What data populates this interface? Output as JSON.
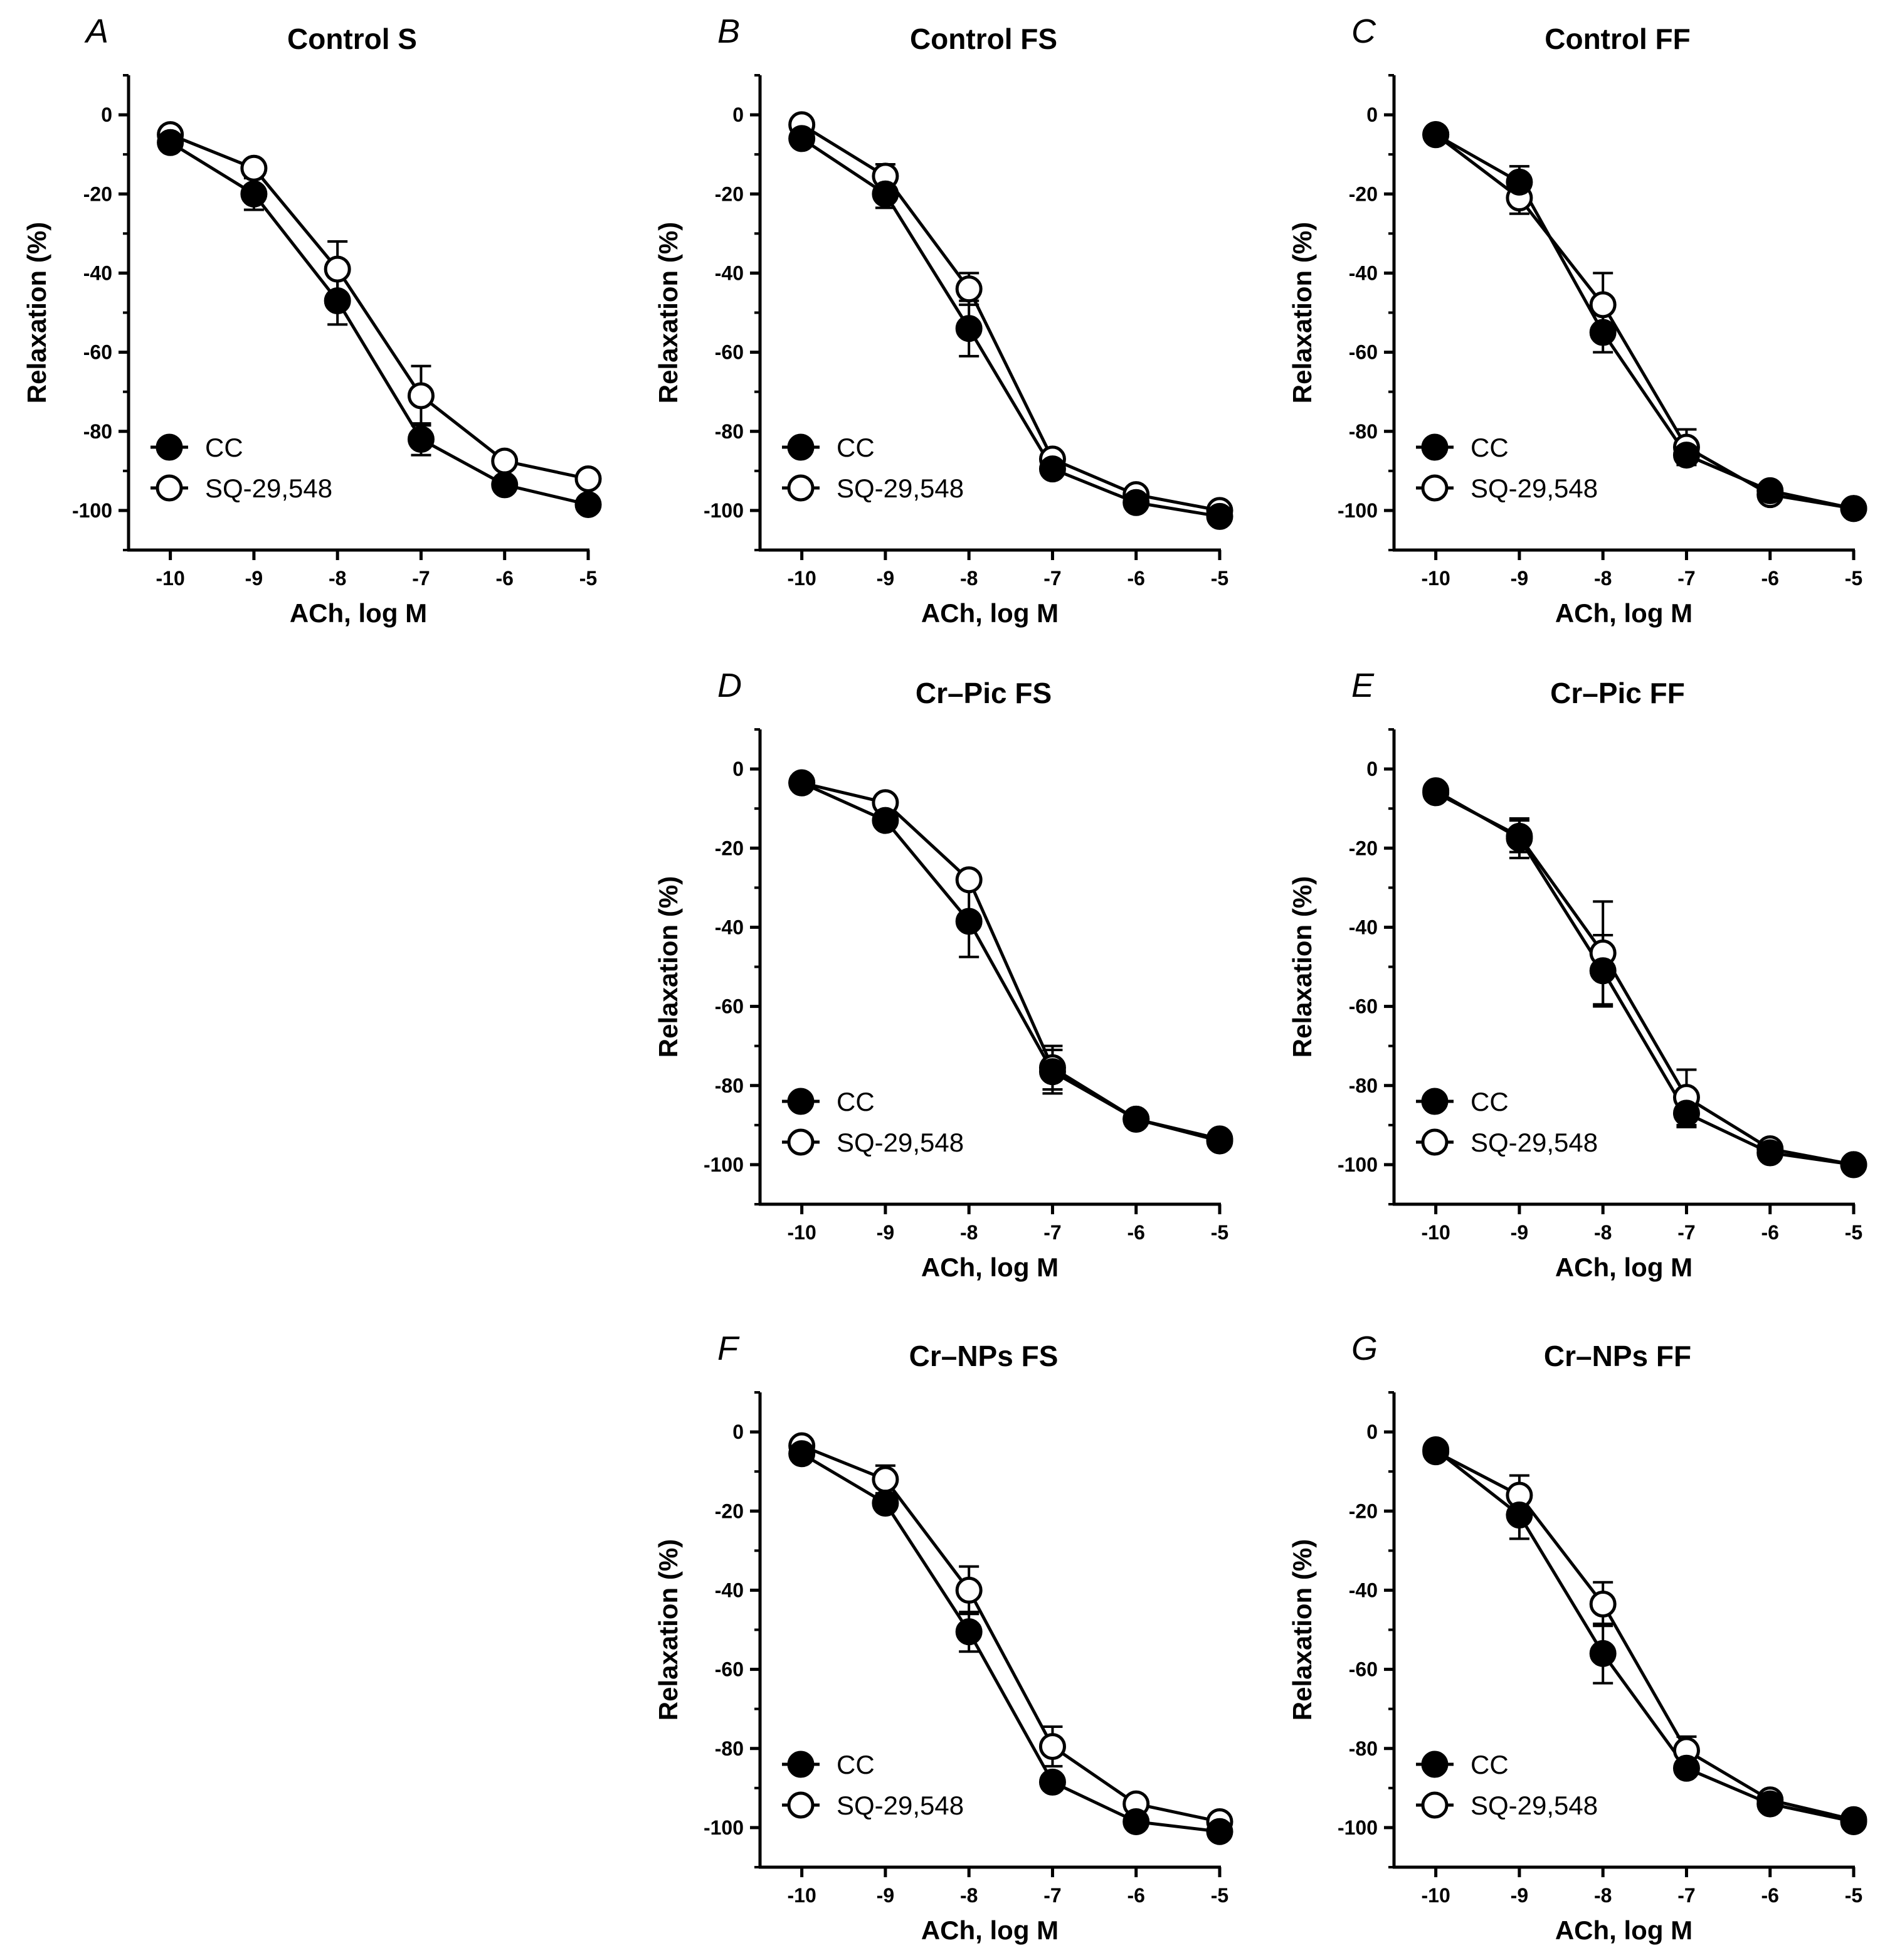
{
  "figure": {
    "y_axis_label": "Relaxation (%)",
    "x_axis_label": "ACh, log M"
  },
  "chart_data": [
    {
      "type": "line",
      "letter": "A",
      "title": "Control S",
      "xlabel": "ACh, log M",
      "ylabel": "Relaxation (%)",
      "xlim": [
        -10.5,
        -5
      ],
      "ylim": [
        -110,
        10
      ],
      "x": [
        -10,
        -9,
        -8,
        -7,
        -6,
        -5
      ],
      "xticks": [
        "-10",
        "-9",
        "-8",
        "-7",
        "-6",
        "-5"
      ],
      "yticks": [
        "0",
        "-20",
        "-40",
        "-60",
        "-80",
        "-100"
      ],
      "legend": "bottom-left",
      "series": [
        {
          "name": "CC",
          "marker": "filled",
          "values": [
            -7,
            -20,
            -47,
            -82,
            -93.5,
            -98.5
          ],
          "err": [
            1,
            4,
            6,
            4,
            1,
            1
          ]
        },
        {
          "name": "SQ-29,548",
          "marker": "open",
          "values": [
            -5,
            -13.5,
            -39,
            -71,
            -87.5,
            -92
          ],
          "err": [
            1,
            1,
            7,
            7.5,
            1,
            1
          ]
        }
      ]
    },
    {
      "type": "line",
      "letter": "B",
      "title": "Control FS",
      "xlabel": "ACh, log M",
      "ylabel": "Relaxation (%)",
      "xlim": [
        -10.5,
        -5
      ],
      "ylim": [
        -110,
        10
      ],
      "x": [
        -10,
        -9,
        -8,
        -7,
        -6,
        -5
      ],
      "xticks": [
        "-10",
        "-9",
        "-8",
        "-7",
        "-6",
        "-5"
      ],
      "yticks": [
        "0",
        "-20",
        "-40",
        "-60",
        "-80",
        "-100"
      ],
      "legend": "bottom-left",
      "series": [
        {
          "name": "CC",
          "marker": "filled",
          "values": [
            -6,
            -20,
            -54,
            -89.5,
            -98,
            -101.5
          ],
          "err": [
            1,
            3.5,
            7,
            1.5,
            1,
            1
          ]
        },
        {
          "name": "SQ-29,548",
          "marker": "open",
          "values": [
            -2.5,
            -15.5,
            -44,
            -87,
            -96,
            -100
          ],
          "err": [
            1,
            3,
            4,
            1.5,
            1,
            1
          ]
        }
      ]
    },
    {
      "type": "line",
      "letter": "C",
      "title": "Control FF",
      "xlabel": "ACh, log M",
      "ylabel": "Relaxation (%)",
      "xlim": [
        -10.5,
        -5
      ],
      "ylim": [
        -110,
        10
      ],
      "x": [
        -10,
        -9,
        -8,
        -7,
        -6,
        -5
      ],
      "xticks": [
        "-10",
        "-9",
        "-8",
        "-7",
        "-6",
        "-5"
      ],
      "yticks": [
        "0",
        "-20",
        "-40",
        "-60",
        "-80",
        "-100"
      ],
      "legend": "bottom-left",
      "series": [
        {
          "name": "CC",
          "marker": "filled",
          "values": [
            -5,
            -17,
            -55,
            -86,
            -95,
            -99.5
          ],
          "err": [
            1,
            4,
            5,
            1.5,
            1,
            1
          ]
        },
        {
          "name": "SQ-29,548",
          "marker": "open",
          "values": [
            -5,
            -21,
            -48,
            -84,
            -96,
            -99.5
          ],
          "err": [
            1,
            4,
            8,
            4.5,
            1,
            1
          ]
        }
      ]
    },
    {
      "type": "line",
      "letter": "D",
      "title": "Cr–Pic FS",
      "xlabel": "ACh, log M",
      "ylabel": "Relaxation (%)",
      "xlim": [
        -10.5,
        -5
      ],
      "ylim": [
        -110,
        10
      ],
      "x": [
        -10,
        -9,
        -8,
        -7,
        -6,
        -5
      ],
      "xticks": [
        "-10",
        "-9",
        "-8",
        "-7",
        "-6",
        "-5"
      ],
      "yticks": [
        "0",
        "-20",
        "-40",
        "-60",
        "-80",
        "-100"
      ],
      "legend": "bottom-left",
      "series": [
        {
          "name": "CC",
          "marker": "filled",
          "values": [
            -3.5,
            -13,
            -38.5,
            -76.5,
            -88.5,
            -94
          ],
          "err": [
            1,
            1,
            9,
            5.5,
            1,
            1
          ]
        },
        {
          "name": "SQ-29,548",
          "marker": "open",
          "values": [
            -3.5,
            -8.5,
            -28,
            -75.5,
            -88.5,
            -93.5
          ],
          "err": [
            1,
            1,
            1.5,
            5.5,
            1,
            1
          ]
        }
      ]
    },
    {
      "type": "line",
      "letter": "E",
      "title": "Cr–Pic FF",
      "xlabel": "ACh, log M",
      "ylabel": "Relaxation (%)",
      "xlim": [
        -10.5,
        -5
      ],
      "ylim": [
        -110,
        10
      ],
      "x": [
        -10,
        -9,
        -8,
        -7,
        -6,
        -5
      ],
      "xticks": [
        "-10",
        "-9",
        "-8",
        "-7",
        "-6",
        "-5"
      ],
      "yticks": [
        "0",
        "-20",
        "-40",
        "-60",
        "-80",
        "-100"
      ],
      "legend": "bottom-left",
      "series": [
        {
          "name": "CC",
          "marker": "filled",
          "values": [
            -5.5,
            -17.5,
            -51,
            -87,
            -97,
            -100
          ],
          "err": [
            1,
            5,
            9,
            3.5,
            1,
            1
          ]
        },
        {
          "name": "SQ-29,548",
          "marker": "open",
          "values": [
            -6,
            -17,
            -46.5,
            -83,
            -96,
            -100
          ],
          "err": [
            1,
            4,
            13,
            7,
            1,
            1
          ]
        }
      ]
    },
    {
      "type": "line",
      "letter": "F",
      "title": "Cr–NPs FS",
      "xlabel": "ACh, log M",
      "ylabel": "Relaxation (%)",
      "xlim": [
        -10.5,
        -5
      ],
      "ylim": [
        -110,
        10
      ],
      "x": [
        -10,
        -9,
        -8,
        -7,
        -6,
        -5
      ],
      "xticks": [
        "-10",
        "-9",
        "-8",
        "-7",
        "-6",
        "-5"
      ],
      "yticks": [
        "0",
        "-20",
        "-40",
        "-60",
        "-80",
        "-100"
      ],
      "legend": "bottom-left",
      "series": [
        {
          "name": "CC",
          "marker": "filled",
          "values": [
            -5.5,
            -18,
            -50.5,
            -88.5,
            -98.5,
            -101
          ],
          "err": [
            1,
            1,
            5,
            1,
            1,
            1
          ]
        },
        {
          "name": "SQ-29,548",
          "marker": "open",
          "values": [
            -3.5,
            -12,
            -40,
            -79.5,
            -94,
            -98.5
          ],
          "err": [
            1,
            3.5,
            6,
            5,
            1,
            1
          ]
        }
      ]
    },
    {
      "type": "line",
      "letter": "G",
      "title": "Cr–NPs FF",
      "xlabel": "ACh, log M",
      "ylabel": "Relaxation (%)",
      "xlim": [
        -10.5,
        -5
      ],
      "ylim": [
        -110,
        10
      ],
      "x": [
        -10,
        -9,
        -8,
        -7,
        -6,
        -5
      ],
      "xticks": [
        "-10",
        "-9",
        "-8",
        "-7",
        "-6",
        "-5"
      ],
      "yticks": [
        "0",
        "-20",
        "-40",
        "-60",
        "-80",
        "-100"
      ],
      "legend": "bottom-left",
      "series": [
        {
          "name": "CC",
          "marker": "filled",
          "values": [
            -4.5,
            -21,
            -56,
            -85,
            -94,
            -98.5
          ],
          "err": [
            1,
            6,
            7.5,
            1.5,
            1,
            1
          ]
        },
        {
          "name": "SQ-29,548",
          "marker": "open",
          "values": [
            -5,
            -16,
            -43.5,
            -80.5,
            -93,
            -98
          ],
          "err": [
            1,
            5,
            5.5,
            3.5,
            1,
            1
          ]
        }
      ]
    }
  ]
}
